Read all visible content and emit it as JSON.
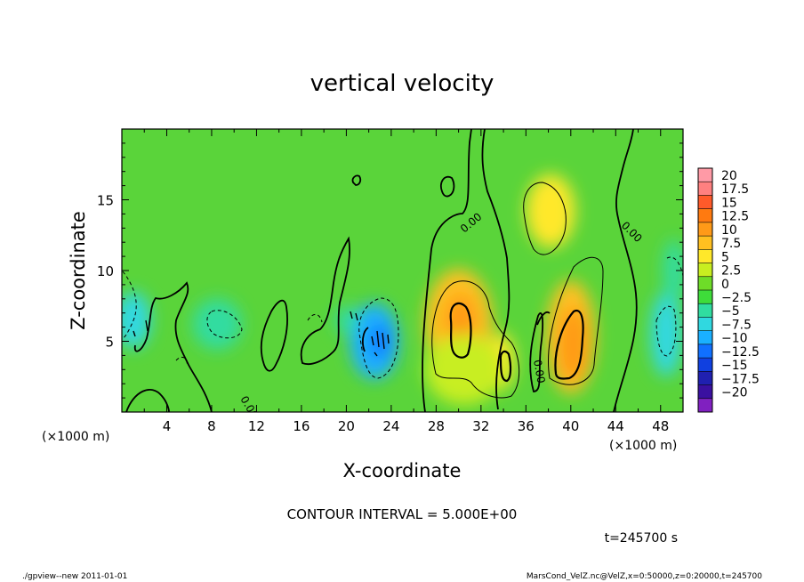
{
  "chart_data": {
    "type": "heatmap",
    "title": "vertical velocity",
    "xlabel": "X-coordinate",
    "ylabel": "Z-coordinate",
    "x_unit_left": "(×1000 m)",
    "x_unit_right": "(×1000 m)",
    "xlim": [
      0,
      50
    ],
    "ylim": [
      0,
      20
    ],
    "x_ticks": [
      4,
      8,
      12,
      16,
      20,
      24,
      28,
      32,
      36,
      40,
      44,
      48
    ],
    "y_ticks": [
      5,
      10,
      15
    ],
    "colorbar_labels": [
      "20",
      "17.5",
      "15",
      "12.5",
      "10",
      "7.5",
      "5",
      "2.5",
      "0",
      "−2.5",
      "−5",
      "−7.5",
      "−10",
      "−12.5",
      "−15",
      "−17.5",
      "−20"
    ],
    "colorbar_colors": [
      "#ff9aa6",
      "#ff8080",
      "#ff5a2a",
      "#ff7a10",
      "#ff9a18",
      "#ffc020",
      "#ffe82a",
      "#c8ee20",
      "#6edc28",
      "#3edc3a",
      "#30dca0",
      "#30d8e0",
      "#1ab0ff",
      "#1070ff",
      "#1040e0",
      "#2020b0",
      "#3a10a0",
      "#8020c0"
    ],
    "contour_interval_text": "CONTOUR INTERVAL = 5.000E+00",
    "contour_label": "0.00",
    "time_text": "t=245700 s",
    "blobs": [
      {
        "x": 30.0,
        "z": 6.3,
        "rx": 3.0,
        "rz": 3.8,
        "value": 8.5
      },
      {
        "x": 30.2,
        "z": 6.3,
        "rx": 1.4,
        "rz": 2.0,
        "value": 12.0
      },
      {
        "x": 33.8,
        "z": 3.6,
        "rx": 1.2,
        "rz": 2.0,
        "value": 7.0
      },
      {
        "x": 40.0,
        "z": 5.3,
        "rx": 2.2,
        "rz": 4.0,
        "value": 9.0
      },
      {
        "x": 40.2,
        "z": 4.8,
        "rx": 1.3,
        "rz": 2.6,
        "value": 12.0
      },
      {
        "x": 38.2,
        "z": 14.2,
        "rx": 2.2,
        "rz": 2.6,
        "value": 6.5
      },
      {
        "x": 22.5,
        "z": 5.0,
        "rx": 2.2,
        "rz": 2.7,
        "value": -8.0
      },
      {
        "x": 23.0,
        "z": 5.0,
        "rx": 0.8,
        "rz": 1.2,
        "value": -12.0
      },
      {
        "x": 1.0,
        "z": 6.5,
        "rx": 1.6,
        "rz": 2.0,
        "value": -5.5
      },
      {
        "x": 8.5,
        "z": 6.2,
        "rx": 2.2,
        "rz": 1.8,
        "value": -4.0
      },
      {
        "x": 48.5,
        "z": 5.5,
        "rx": 1.4,
        "rz": 3.0,
        "value": -6.0
      },
      {
        "x": 49.2,
        "z": 10.0,
        "rx": 1.0,
        "rz": 2.2,
        "value": -3.0
      },
      {
        "x": 20.0,
        "z": 6.5,
        "rx": 1.0,
        "rz": 1.0,
        "value": -4.0
      },
      {
        "x": 30.5,
        "z": 3.0,
        "rx": 3.5,
        "rz": 2.5,
        "value": 4.0
      }
    ]
  },
  "footer": {
    "left": "./gpview--new   2011-01-01",
    "right": "MarsCond_VelZ.nc@VelZ,x=0:50000,z=0:20000,t=245700"
  }
}
